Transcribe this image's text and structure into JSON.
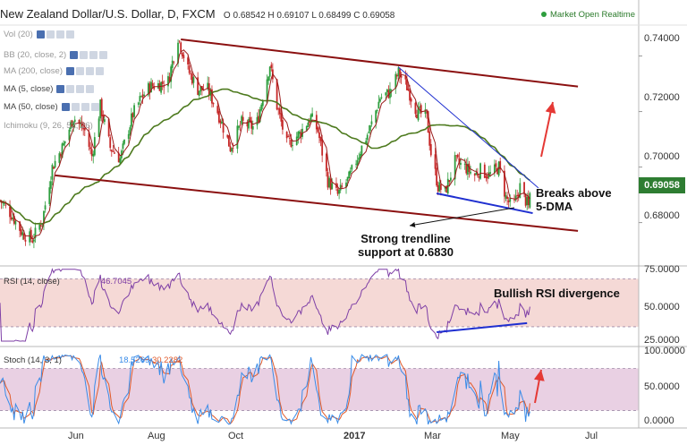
{
  "header": {
    "symbol": "New Zealand Dollar/U.S. Dollar, D, FXCM",
    "quote": "O 0.68542 H 0.69107 L 0.68499 C 0.69058",
    "status": "Market Open Realtime"
  },
  "indicators": [
    {
      "label": "Vol (20)",
      "dim": true
    },
    {
      "label": "BB (20, close, 2)",
      "dim": true
    },
    {
      "label": "MA (200, close)",
      "dim": true
    },
    {
      "label": "MA (5, close)",
      "dim": false
    },
    {
      "label": "MA (50, close)",
      "dim": false
    },
    {
      "label": "Ichimoku (9, 26, 52, 26)",
      "dim": true
    }
  ],
  "annotations": {
    "breaks": "Breaks above\n5-DMA",
    "support": "Strong trendline\nsupport at 0.6830",
    "rsi_div": "Bullish RSI divergence"
  },
  "price_axis": [
    "0.74000",
    "0.72000",
    "0.70000",
    "0.68000"
  ],
  "last_price": "0.69058",
  "rsi_label": "RSI (14, close)",
  "rsi_value": "46.7045",
  "rsi_axis": [
    "75.0000",
    "50.0000",
    "25.0000"
  ],
  "stoch_label": "Stoch (14, 3, 1)",
  "stoch_k": "18.5269",
  "stoch_d": "30.2282",
  "stoch_axis": [
    "100.0000",
    "50.0000",
    "0.0000"
  ],
  "x_axis": [
    {
      "label": "Jun",
      "bold": false
    },
    {
      "label": "Aug",
      "bold": false
    },
    {
      "label": "Oct",
      "bold": false
    },
    {
      "label": "2017",
      "bold": true
    },
    {
      "label": "Mar",
      "bold": false
    },
    {
      "label": "May",
      "bold": false
    },
    {
      "label": "Jul",
      "bold": false
    }
  ],
  "colors": {
    "up": "#2e9e3e",
    "down": "#c62828",
    "ma50": "#4d7a1e",
    "ma5": "#9b1b1b",
    "channel": "#8b1010",
    "trendline": "#1f2fd0",
    "rsi": "#7e3fa6",
    "rsi_band": "#f5d9d6",
    "stoch_band": "#e9d0e3",
    "stoch_k": "#3a8ce8",
    "stoch_d": "#e05a2a",
    "price_tag": "#2e7d32",
    "arrow": "#e53935"
  },
  "chart_data": {
    "type": "candlestick",
    "title": "New Zealand Dollar/U.S. Dollar, D, FXCM",
    "ylim": [
      0.666,
      0.7505
    ],
    "x_range": [
      "2016-05-02",
      "2017-07-28"
    ],
    "anchors": [
      [
        "2016-05-02",
        0.688
      ],
      [
        "2016-05-10",
        0.683
      ],
      [
        "2016-05-18",
        0.676
      ],
      [
        "2016-05-25",
        0.674
      ],
      [
        "2016-06-01",
        0.681
      ],
      [
        "2016-06-08",
        0.7
      ],
      [
        "2016-06-16",
        0.708
      ],
      [
        "2016-06-23",
        0.718
      ],
      [
        "2016-07-01",
        0.713
      ],
      [
        "2016-07-06",
        0.704
      ],
      [
        "2016-07-12",
        0.722
      ],
      [
        "2016-07-19",
        0.707
      ],
      [
        "2016-07-26",
        0.703
      ],
      [
        "2016-08-04",
        0.719
      ],
      [
        "2016-08-10",
        0.725
      ],
      [
        "2016-08-16",
        0.729
      ],
      [
        "2016-08-24",
        0.73
      ],
      [
        "2016-08-29",
        0.731
      ],
      [
        "2016-09-05",
        0.747
      ],
      [
        "2016-09-12",
        0.735
      ],
      [
        "2016-09-19",
        0.728
      ],
      [
        "2016-09-26",
        0.728
      ],
      [
        "2016-10-03",
        0.72
      ],
      [
        "2016-10-12",
        0.707
      ],
      [
        "2016-10-20",
        0.716
      ],
      [
        "2016-10-30",
        0.714
      ],
      [
        "2016-11-09",
        0.737
      ],
      [
        "2016-11-14",
        0.722
      ],
      [
        "2016-11-21",
        0.708
      ],
      [
        "2016-11-30",
        0.712
      ],
      [
        "2016-12-08",
        0.718
      ],
      [
        "2016-12-13",
        0.713
      ],
      [
        "2016-12-20",
        0.695
      ],
      [
        "2016-12-27",
        0.69
      ],
      [
        "2017-01-04",
        0.696
      ],
      [
        "2017-01-12",
        0.706
      ],
      [
        "2017-01-19",
        0.714
      ],
      [
        "2017-01-26",
        0.725
      ],
      [
        "2017-02-02",
        0.727
      ],
      [
        "2017-02-08",
        0.734
      ],
      [
        "2017-02-14",
        0.729
      ],
      [
        "2017-02-21",
        0.72
      ],
      [
        "2017-02-28",
        0.718
      ],
      [
        "2017-03-03",
        0.705
      ],
      [
        "2017-03-08",
        0.693
      ],
      [
        "2017-03-13",
        0.691
      ],
      [
        "2017-03-20",
        0.702
      ],
      [
        "2017-03-27",
        0.7
      ],
      [
        "2017-04-03",
        0.697
      ],
      [
        "2017-04-07",
        0.699
      ],
      [
        "2017-04-13",
        0.697
      ],
      [
        "2017-04-20",
        0.7
      ],
      [
        "2017-04-25",
        0.689
      ],
      [
        "2017-04-30",
        0.685
      ],
      [
        "2017-05-05",
        0.693
      ],
      [
        "2017-05-09",
        0.688
      ],
      [
        "2017-05-11",
        0.6855
      ],
      [
        "2017-05-12",
        0.6906
      ]
    ],
    "last": {
      "open": 0.68542,
      "high": 0.69107,
      "low": 0.68499,
      "close": 0.69058
    },
    "channel_upper": [
      [
        "2016-09-07",
        0.746
      ],
      [
        "2017-06-15",
        0.729
      ]
    ],
    "channel_lower": [
      [
        "2016-06-10",
        0.697
      ],
      [
        "2017-06-15",
        0.677
      ]
    ],
    "downtrend": [
      [
        "2017-02-08",
        0.736
      ],
      [
        "2017-05-18",
        0.6925
      ]
    ],
    "support_line": [
      [
        "2017-03-07",
        0.6905
      ],
      [
        "2017-05-14",
        0.6834
      ]
    ],
    "rsi": {
      "ylim": [
        15,
        80
      ],
      "last": 46.7045,
      "levels": [
        70,
        30
      ],
      "divergence": [
        [
          "2017-03-07",
          25.5
        ],
        [
          "2017-05-10",
          33
        ]
      ]
    },
    "stoch": {
      "ylim": [
        -5,
        110
      ],
      "k_last": 18.5269,
      "d_last": 30.2282,
      "levels": [
        80,
        20
      ]
    }
  }
}
